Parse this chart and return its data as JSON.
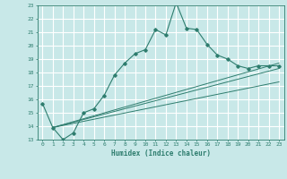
{
  "xlabel": "Humidex (Indice chaleur)",
  "ylabel": "",
  "xlim": [
    -0.5,
    23.5
  ],
  "ylim": [
    13,
    23
  ],
  "yticks": [
    13,
    14,
    15,
    16,
    17,
    18,
    19,
    20,
    21,
    22,
    23
  ],
  "xticks": [
    0,
    1,
    2,
    3,
    4,
    5,
    6,
    7,
    8,
    9,
    10,
    11,
    12,
    13,
    14,
    15,
    16,
    17,
    18,
    19,
    20,
    21,
    22,
    23
  ],
  "bg_color": "#c8e8e8",
  "grid_color": "#ffffff",
  "line_color": "#2e7d6e",
  "lines": [
    {
      "x": [
        0,
        1,
        2,
        3,
        4,
        5,
        6,
        7,
        8,
        9,
        10,
        11,
        12,
        13,
        14,
        15,
        16,
        17,
        18,
        19,
        20,
        21,
        22,
        23
      ],
      "y": [
        15.7,
        13.9,
        13.0,
        13.5,
        15.0,
        15.3,
        16.3,
        17.8,
        18.7,
        19.4,
        19.7,
        21.2,
        20.8,
        23.2,
        21.3,
        21.2,
        20.1,
        19.3,
        19.0,
        18.5,
        18.3,
        18.5,
        18.5,
        18.5
      ]
    },
    {
      "x": [
        1,
        23
      ],
      "y": [
        13.9,
        18.7
      ]
    },
    {
      "x": [
        1,
        23
      ],
      "y": [
        13.9,
        18.3
      ]
    },
    {
      "x": [
        1,
        23
      ],
      "y": [
        13.9,
        17.3
      ]
    }
  ]
}
